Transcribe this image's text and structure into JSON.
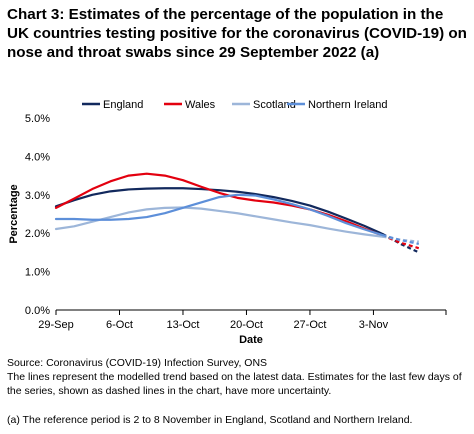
{
  "chart_data": {
    "type": "line",
    "title": "Chart 3: Estimates of the percentage of the population in the UK countries testing positive for the coronavirus (COVID-19) on nose and throat swabs since 29 September 2022 (a)",
    "xlabel": "Date",
    "ylabel": "Percentage",
    "x_tick_labels": [
      "29-Sep",
      "6-Oct",
      "13-Oct",
      "20-Oct",
      "27-Oct",
      "3-Nov"
    ],
    "y_tick_labels": [
      "0.0%",
      "1.0%",
      "2.0%",
      "3.0%",
      "4.0%",
      "5.0%"
    ],
    "ylim": [
      0,
      5
    ],
    "x": [
      "2022-09-29",
      "2022-10-01",
      "2022-10-03",
      "2022-10-05",
      "2022-10-07",
      "2022-10-09",
      "2022-10-11",
      "2022-10-13",
      "2022-10-15",
      "2022-10-17",
      "2022-10-19",
      "2022-10-21",
      "2022-10-23",
      "2022-10-25",
      "2022-10-27",
      "2022-10-29",
      "2022-10-31",
      "2022-11-02",
      "2022-11-04",
      "2022-11-06",
      "2022-11-08"
    ],
    "dashed_from": "2022-11-04",
    "legend_position": "top",
    "grid": false,
    "series": [
      {
        "name": "England",
        "color": "#12295d",
        "values": [
          2.7,
          2.86,
          3.0,
          3.09,
          3.14,
          3.16,
          3.17,
          3.17,
          3.15,
          3.12,
          3.08,
          3.02,
          2.94,
          2.84,
          2.72,
          2.56,
          2.38,
          2.19,
          1.98,
          1.72,
          1.5
        ]
      },
      {
        "name": "Wales",
        "color": "#e3000f",
        "values": [
          2.66,
          2.9,
          3.15,
          3.35,
          3.5,
          3.55,
          3.5,
          3.38,
          3.21,
          3.05,
          2.92,
          2.85,
          2.8,
          2.72,
          2.62,
          2.48,
          2.31,
          2.12,
          1.94,
          1.75,
          1.61
        ]
      },
      {
        "name": "Scotland",
        "color": "#9db6d9",
        "values": [
          2.11,
          2.18,
          2.3,
          2.42,
          2.54,
          2.62,
          2.66,
          2.67,
          2.64,
          2.58,
          2.52,
          2.44,
          2.36,
          2.28,
          2.21,
          2.12,
          2.04,
          1.97,
          1.91,
          1.83,
          1.78
        ]
      },
      {
        "name": "Northern Ireland",
        "color": "#5d8fd9",
        "values": [
          2.37,
          2.37,
          2.35,
          2.35,
          2.37,
          2.42,
          2.52,
          2.66,
          2.8,
          2.94,
          3.0,
          2.98,
          2.88,
          2.76,
          2.62,
          2.45,
          2.26,
          2.1,
          1.95,
          1.82,
          1.72
        ]
      }
    ]
  },
  "footer": {
    "source": "Source: Coronavirus (COVID-19) Infection Survey, ONS",
    "note": "The lines represent the modelled trend based on the latest data. Estimates for the last few days of the series, shown as dashed lines in the chart, have more uncertainty.",
    "footnote": "(a) The reference period is 2 to 8 November in England, Scotland and Northern Ireland."
  }
}
